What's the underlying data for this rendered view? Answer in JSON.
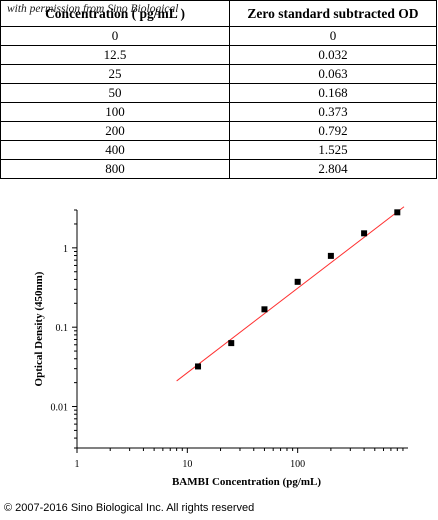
{
  "table": {
    "headers": [
      "Concentration ( pg/mL )",
      "Zero standard subtracted OD"
    ],
    "watermark": "with permission from Sino Biological",
    "rows": [
      [
        "0",
        "0"
      ],
      [
        "12.5",
        "0.032"
      ],
      [
        "25",
        "0.063"
      ],
      [
        "50",
        "0.168"
      ],
      [
        "100",
        "0.373"
      ],
      [
        "200",
        "0.792"
      ],
      [
        "400",
        "1.525"
      ],
      [
        "800",
        "2.804"
      ]
    ]
  },
  "chart_data": {
    "type": "scatter",
    "xscale": "log",
    "yscale": "log",
    "xlabel": "BAMBI Concentration (pg/mL)",
    "ylabel": "Optical Density (450nm)",
    "xlim": [
      1,
      1000
    ],
    "ylim": [
      0.003,
      3
    ],
    "xticks": [
      "1",
      "10",
      "100"
    ],
    "yticks": [
      "0.01",
      "0.1",
      "1"
    ],
    "points": [
      [
        12.5,
        0.032
      ],
      [
        25,
        0.063
      ],
      [
        50,
        0.168
      ],
      [
        100,
        0.373
      ],
      [
        200,
        0.792
      ],
      [
        400,
        1.525
      ],
      [
        800,
        2.804
      ]
    ],
    "fit_line": {
      "x": [
        8,
        920
      ],
      "y": [
        0.021,
        3.3
      ]
    },
    "colors": {
      "points": "#000000",
      "fit_line": "#ff3030"
    },
    "grid": false
  },
  "footer": "© 2007-2016 Sino Biological Inc. All rights reserved"
}
